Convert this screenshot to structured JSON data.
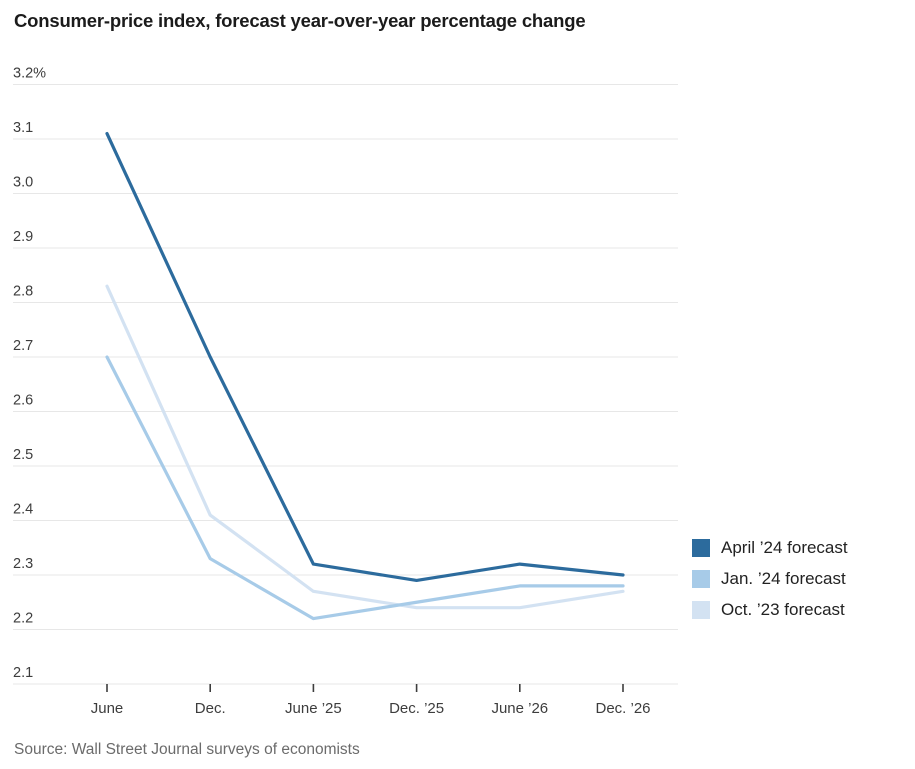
{
  "title": "Consumer-price index, forecast year-over-year percentage change",
  "source": "Source: Wall Street Journal surveys of economists",
  "chart_data": {
    "type": "line",
    "x": [
      "June",
      "Dec.",
      "June ’25",
      "Dec. ’25",
      "June ’26",
      "Dec. ’26"
    ],
    "series": [
      {
        "name": "April ’24 forecast",
        "color": "#2c6b9d",
        "values": [
          3.11,
          2.7,
          2.32,
          2.29,
          2.32,
          2.3
        ]
      },
      {
        "name": "Jan. ’24 forecast",
        "color": "#a7cbe8",
        "values": [
          2.7,
          2.33,
          2.22,
          2.25,
          2.28,
          2.28
        ]
      },
      {
        "name": "Oct. ’23 forecast",
        "color": "#d3e2f2",
        "values": [
          2.83,
          2.41,
          2.27,
          2.24,
          2.24,
          2.27
        ]
      }
    ],
    "ylim": [
      2.1,
      3.2
    ],
    "ytick_step": 0.1,
    "ytick_top_suffix": "%",
    "grid": true,
    "legend_position": "right",
    "axis_text_color": "#3d3d3d",
    "gridline_color": "#e7e7e7"
  }
}
